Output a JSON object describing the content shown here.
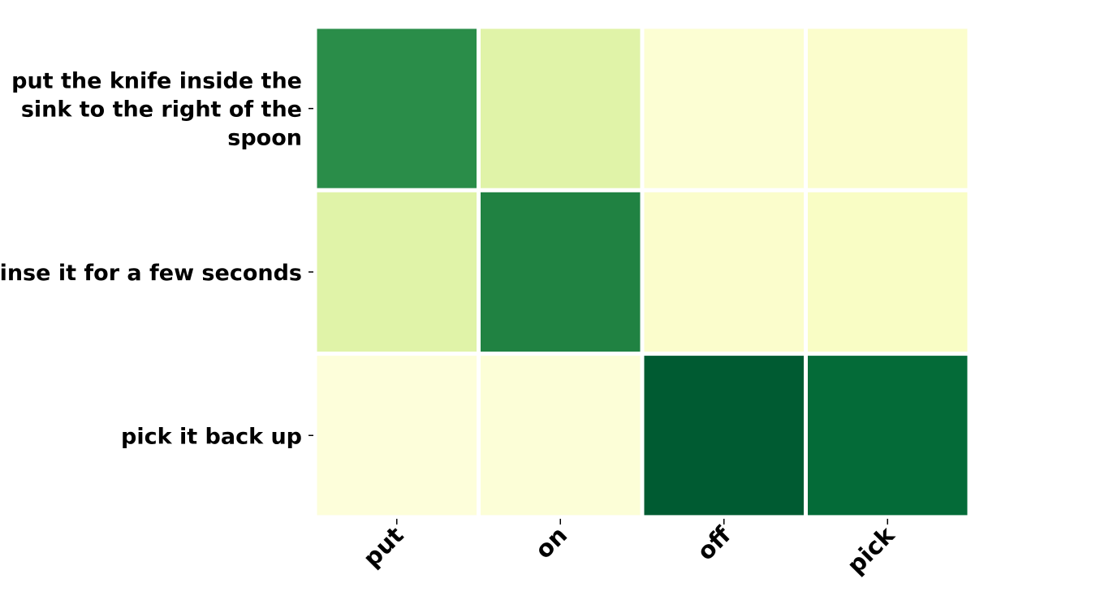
{
  "chart_data": {
    "type": "heatmap",
    "title": "",
    "xlabel": "",
    "ylabel": "",
    "x_categories": [
      "put",
      "on",
      "off",
      "pick"
    ],
    "y_categories": [
      [
        "put the knife inside the",
        "sink to the right of the",
        "spoon"
      ],
      [
        "rinse it for a few seconds"
      ],
      [
        "pick it back up"
      ]
    ],
    "values": [
      [
        0.72,
        0.22,
        0.05,
        0.07
      ],
      [
        0.22,
        0.76,
        0.07,
        0.09
      ],
      [
        0.03,
        0.04,
        0.92,
        0.86
      ]
    ],
    "value_range": [
      0,
      1
    ],
    "colormap": "YlGn",
    "colorbar": false,
    "grid": false,
    "colors": {
      "low": "#ffffe5",
      "mid_low": "#f7fcb9",
      "mid": "#d9f0a3",
      "mid_high": "#78c679",
      "high": "#238443"
    }
  }
}
